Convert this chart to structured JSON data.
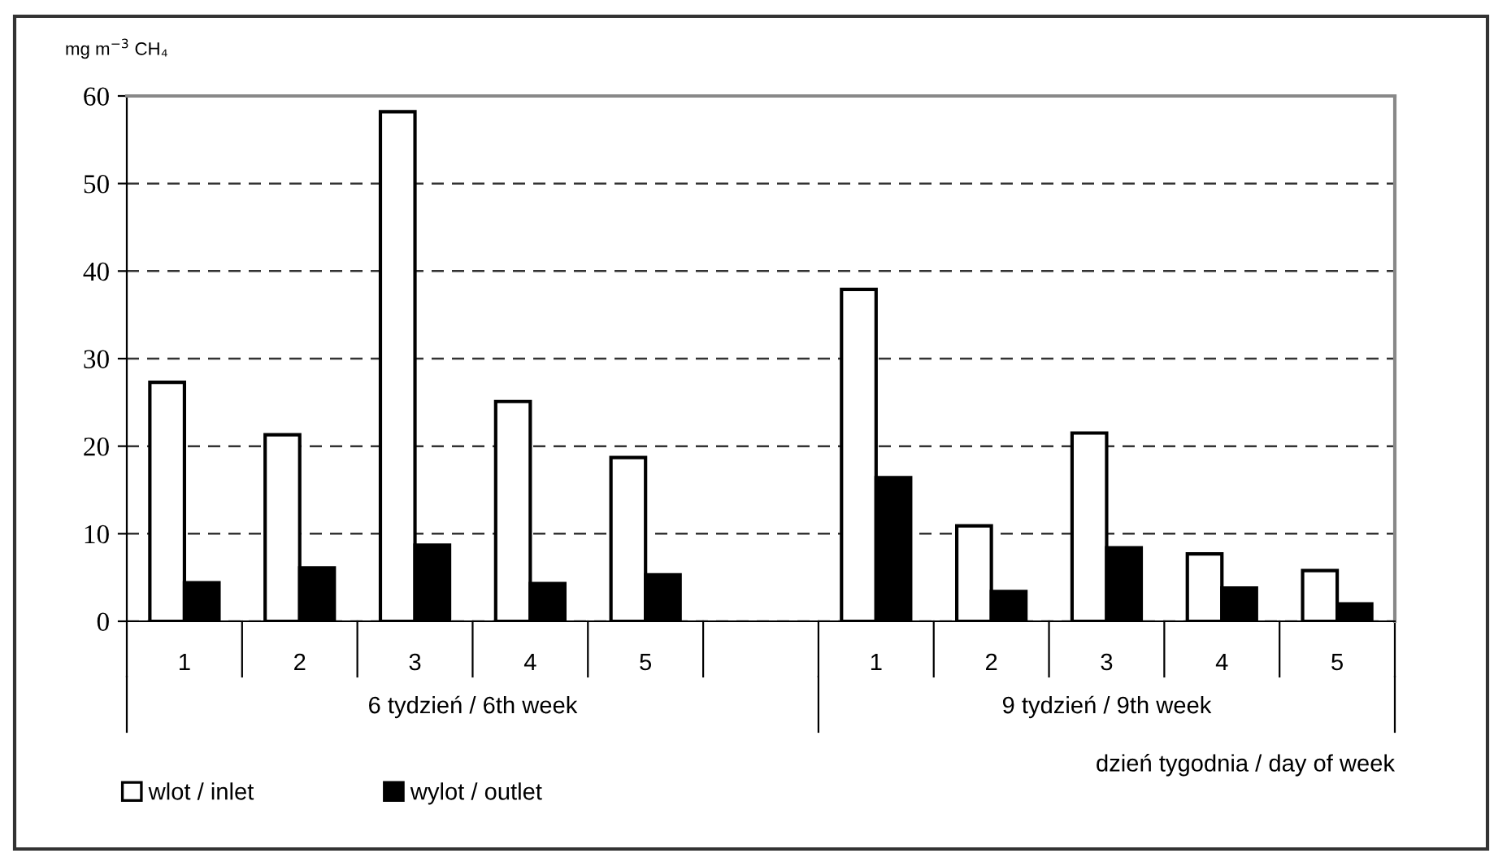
{
  "chart_data": {
    "type": "bar",
    "ylabel": "mg m$^{−3}$ CH₄",
    "xlabel": "dzień tygodnia / day of week",
    "categories": [
      "1",
      "2",
      "3",
      "4",
      "5",
      null,
      "1",
      "2",
      "3",
      "4",
      "5"
    ],
    "series": [
      {
        "name": "wlot / inlet",
        "color": "#ffffff",
        "values": [
          27.3,
          21.3,
          58.2,
          25.1,
          18.7,
          null,
          37.9,
          10.9,
          21.5,
          7.7,
          5.8
        ]
      },
      {
        "name": "wylot / outlet",
        "color": "#000000",
        "values": [
          4.4,
          6.1,
          8.7,
          4.3,
          5.3,
          null,
          16.4,
          3.4,
          8.4,
          3.8,
          2.0
        ]
      }
    ],
    "annotations": [
      "6 tydzień / 6th week",
      "9 tydzień / 9th week"
    ],
    "ylim": [
      0,
      60
    ],
    "yticks": [
      0,
      10,
      20,
      30,
      40,
      50,
      60
    ],
    "grid": "y",
    "legend": "bottom left"
  }
}
